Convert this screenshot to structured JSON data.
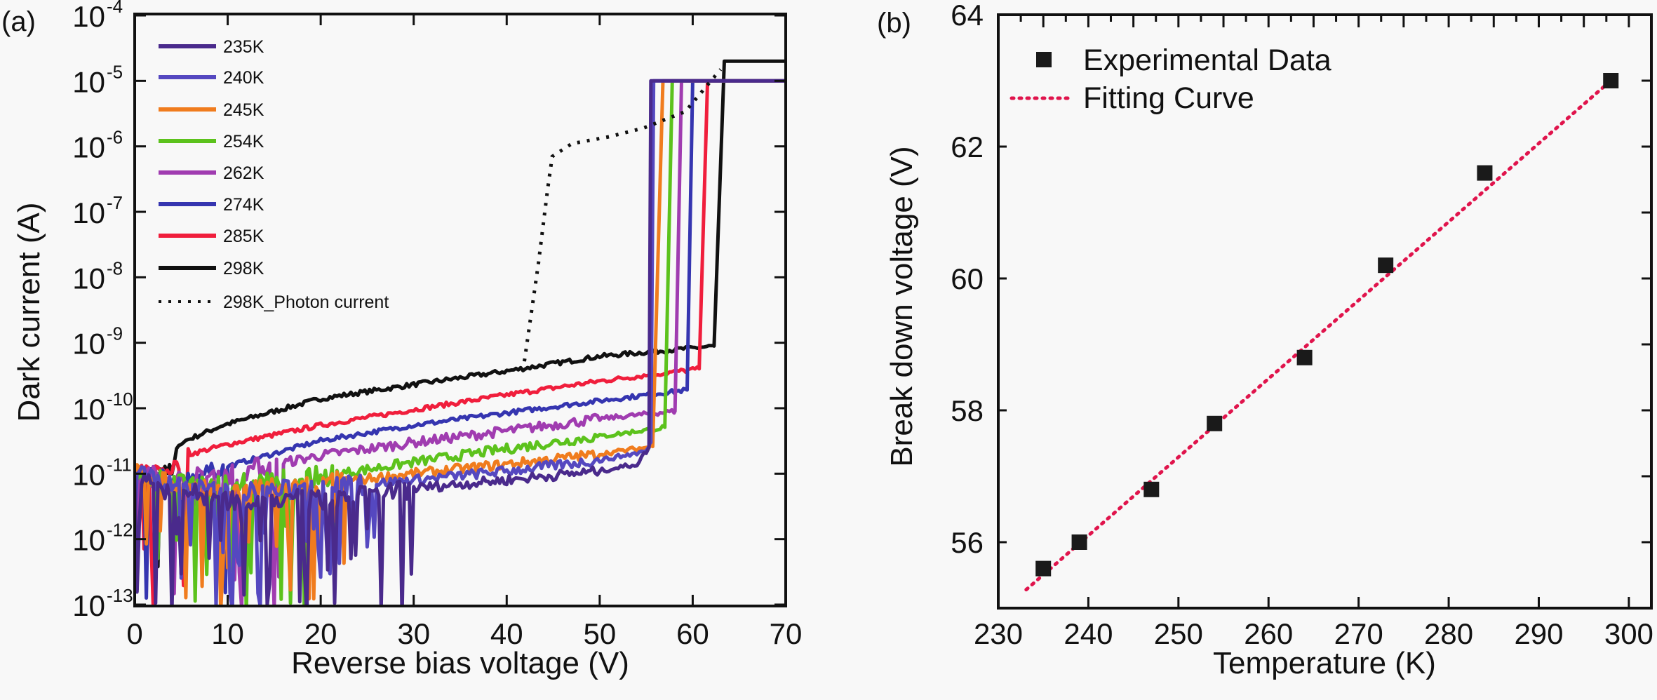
{
  "chart_data": [
    {
      "panel_label": "(a)",
      "type": "line",
      "xlabel": "Reverse bias voltage (V)",
      "ylabel": "Dark current (A)",
      "xlim": [
        0,
        70
      ],
      "ylim": [
        1e-13,
        0.0001
      ],
      "yscale": "log",
      "grid": false,
      "legend_position": "top-left",
      "xticks": [
        "0",
        "10",
        "20",
        "30",
        "40",
        "50",
        "60",
        "70"
      ],
      "yticks": [
        {
          "base": "10",
          "exp": "-4"
        },
        {
          "base": "10",
          "exp": "-5"
        },
        {
          "base": "10",
          "exp": "-6"
        },
        {
          "base": "10",
          "exp": "-7"
        },
        {
          "base": "10",
          "exp": "-8"
        },
        {
          "base": "10",
          "exp": "-9"
        },
        {
          "base": "10",
          "exp": "-10"
        },
        {
          "base": "10",
          "exp": "-11"
        },
        {
          "base": "10",
          "exp": "-12"
        },
        {
          "base": "10",
          "exp": "-13"
        }
      ],
      "series": [
        {
          "name": "235K",
          "color": "#4a2a8c",
          "style": "solid",
          "points": [
            [
              0,
              1.2e-11
            ],
            [
              3,
              6e-12
            ],
            [
              10,
              4e-12
            ],
            [
              20,
              4e-12
            ],
            [
              30,
              6e-12
            ],
            [
              40,
              8e-12
            ],
            [
              50,
              1.1e-11
            ],
            [
              54,
              1.4e-11
            ],
            [
              55.3,
              2.5e-11
            ],
            [
              55.5,
              1e-05
            ],
            [
              70,
              1e-05
            ]
          ]
        },
        {
          "name": "240K",
          "color": "#5548c0",
          "style": "solid",
          "points": [
            [
              0,
              1.2e-11
            ],
            [
              3,
              7e-12
            ],
            [
              10,
              5e-12
            ],
            [
              20,
              6e-12
            ],
            [
              30,
              8e-12
            ],
            [
              40,
              1.1e-11
            ],
            [
              50,
              1.6e-11
            ],
            [
              55,
              2.2e-11
            ],
            [
              55.5,
              3e-11
            ],
            [
              55.8,
              1e-05
            ],
            [
              70,
              1e-05
            ]
          ]
        },
        {
          "name": "245K",
          "color": "#f07c1e",
          "style": "solid",
          "points": [
            [
              0,
              1e-11
            ],
            [
              5,
              6e-12
            ],
            [
              10,
              5e-12
            ],
            [
              20,
              7e-12
            ],
            [
              30,
              1e-11
            ],
            [
              40,
              1.4e-11
            ],
            [
              50,
              2e-11
            ],
            [
              55.7,
              2.6e-11
            ],
            [
              56.8,
              1e-05
            ],
            [
              70,
              1e-05
            ]
          ]
        },
        {
          "name": "254K",
          "color": "#5cc21c",
          "style": "solid",
          "points": [
            [
              0,
              1e-11
            ],
            [
              5,
              7e-12
            ],
            [
              10,
              7e-12
            ],
            [
              20,
              9e-12
            ],
            [
              30,
              1.5e-11
            ],
            [
              40,
              2.4e-11
            ],
            [
              50,
              3.7e-11
            ],
            [
              57,
              5.1e-11
            ],
            [
              57.8,
              1e-05
            ],
            [
              70,
              1e-05
            ]
          ]
        },
        {
          "name": "262K",
          "color": "#a03cb0",
          "style": "solid",
          "points": [
            [
              0,
              1e-11
            ],
            [
              5,
              8e-12
            ],
            [
              10,
              1e-11
            ],
            [
              20,
              1.9e-11
            ],
            [
              30,
              3e-11
            ],
            [
              40,
              4.5e-11
            ],
            [
              50,
              6.9e-11
            ],
            [
              58.1,
              9e-11
            ],
            [
              58.8,
              1e-05
            ],
            [
              70,
              1e-05
            ]
          ]
        },
        {
          "name": "274K",
          "color": "#3535b0",
          "style": "solid",
          "points": [
            [
              0,
              1e-11
            ],
            [
              5,
              8e-12
            ],
            [
              10,
              1.3e-11
            ],
            [
              20,
              3.2e-11
            ],
            [
              30,
              5.5e-11
            ],
            [
              40,
              8.5e-11
            ],
            [
              50,
              1.3e-10
            ],
            [
              59.4,
              1.9e-10
            ],
            [
              60,
              1e-05
            ],
            [
              70,
              1e-05
            ]
          ]
        },
        {
          "name": "285K",
          "color": "#f01e3c",
          "style": "solid",
          "points": [
            [
              0,
              1e-11
            ],
            [
              4,
              1.2e-11
            ],
            [
              6,
              2e-11
            ],
            [
              10,
              2.8e-11
            ],
            [
              20,
              5.5e-11
            ],
            [
              30,
              9.5e-11
            ],
            [
              40,
              1.6e-10
            ],
            [
              50,
              2.6e-10
            ],
            [
              60.7,
              4e-10
            ],
            [
              61.6,
              1e-05
            ],
            [
              70,
              1e-05
            ]
          ]
        },
        {
          "name": "298K",
          "color": "#111111",
          "style": "solid",
          "points": [
            [
              0,
              1e-11
            ],
            [
              2,
              8e-12
            ],
            [
              4,
              1.2e-11
            ],
            [
              5,
              3e-11
            ],
            [
              9.5,
              5.5e-11
            ],
            [
              20,
              1.4e-10
            ],
            [
              30,
              2.3e-10
            ],
            [
              40,
              3.7e-10
            ],
            [
              50,
              6.2e-10
            ],
            [
              62.3,
              8.9e-10
            ],
            [
              63.4,
              2e-05
            ],
            [
              70,
              2e-05
            ]
          ]
        },
        {
          "name": "298K_Photon current",
          "color": "#111111",
          "style": "dotted",
          "points": [
            [
              41.9,
              5.2e-10
            ],
            [
              43.4,
              1.6e-08
            ],
            [
              44.4,
              2.2e-07
            ],
            [
              44.9,
              7e-07
            ],
            [
              47,
              1.1e-06
            ],
            [
              51,
              1.4e-06
            ],
            [
              54.7,
              1.9e-06
            ],
            [
              59.2,
              3.4e-06
            ],
            [
              63,
              1.5e-05
            ]
          ]
        }
      ]
    },
    {
      "panel_label": "(b)",
      "type": "scatter",
      "xlabel": "Temperature (K)",
      "ylabel": "Break down voltage (V)",
      "xlim": [
        230,
        302.5
      ],
      "ylim": [
        55,
        64
      ],
      "grid": false,
      "legend_position": "top-left",
      "xticks": [
        "230",
        "240",
        "250",
        "260",
        "270",
        "280",
        "290",
        "300"
      ],
      "yticks": [
        "56",
        "58",
        "60",
        "62",
        "64"
      ],
      "series": [
        {
          "name": "Experimental Data",
          "type": "scatter",
          "marker": "square",
          "color": "#1a1a1a",
          "x": [
            235,
            239,
            247,
            254,
            264,
            273,
            284,
            298
          ],
          "y": [
            55.6,
            56.0,
            56.8,
            57.8,
            58.8,
            60.2,
            61.6,
            63.0
          ]
        },
        {
          "name": "Fitting Curve",
          "type": "line",
          "style": "dotted",
          "color": "#e0144c",
          "x": [
            233.1,
            298
          ],
          "y": [
            55.28,
            63.0
          ]
        }
      ]
    }
  ]
}
